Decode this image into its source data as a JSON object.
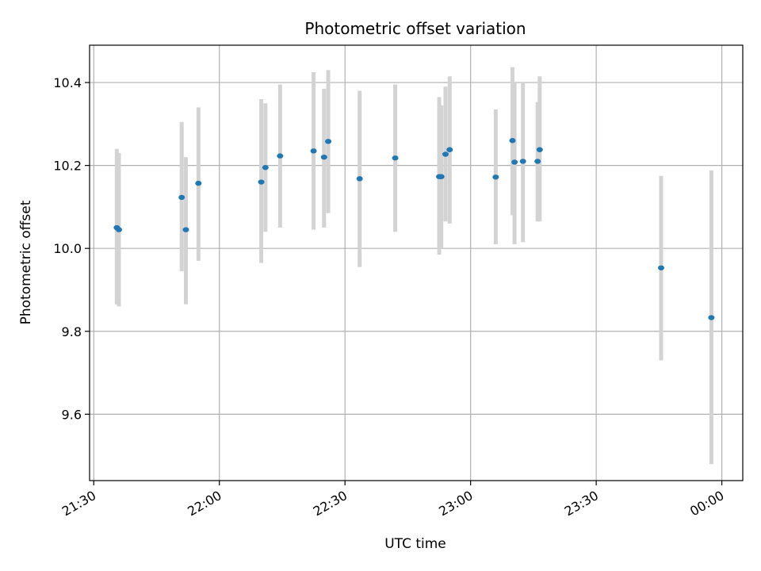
{
  "chart_data": {
    "type": "scatter",
    "title": "Photometric offset variation",
    "xlabel": "UTC time",
    "ylabel": "Photometric offset",
    "grid": true,
    "ylim": [
      9.44,
      10.49
    ],
    "xlim": [
      "21:29",
      "00:05"
    ],
    "x_ticks": [
      "21:30",
      "22:00",
      "22:30",
      "23:00",
      "23:30",
      "00:00"
    ],
    "y_ticks": [
      "9.6",
      "9.8",
      "10.0",
      "10.2",
      "10.4"
    ],
    "colors": {
      "point": "#1f77b4",
      "errorbar": "#d3d3d3",
      "grid": "#b0b0b0",
      "axes": "#000000"
    },
    "points": [
      {
        "t": "21:35:30",
        "y": 10.05,
        "ylo": 9.865,
        "yhi": 10.24
      },
      {
        "t": "21:36:00",
        "y": 10.045,
        "ylo": 9.86,
        "yhi": 10.23
      },
      {
        "t": "21:51:00",
        "y": 10.123,
        "ylo": 9.945,
        "yhi": 10.305
      },
      {
        "t": "21:52:00",
        "y": 10.045,
        "ylo": 9.865,
        "yhi": 10.22
      },
      {
        "t": "21:55:00",
        "y": 10.157,
        "ylo": 9.97,
        "yhi": 10.34
      },
      {
        "t": "22:10:00",
        "y": 10.16,
        "ylo": 9.965,
        "yhi": 10.36
      },
      {
        "t": "22:11:00",
        "y": 10.195,
        "ylo": 10.04,
        "yhi": 10.35
      },
      {
        "t": "22:14:30",
        "y": 10.223,
        "ylo": 10.05,
        "yhi": 10.395
      },
      {
        "t": "22:22:30",
        "y": 10.235,
        "ylo": 10.045,
        "yhi": 10.425
      },
      {
        "t": "22:25:00",
        "y": 10.22,
        "ylo": 10.05,
        "yhi": 10.385
      },
      {
        "t": "22:26:00",
        "y": 10.258,
        "ylo": 10.085,
        "yhi": 10.43
      },
      {
        "t": "22:33:30",
        "y": 10.168,
        "ylo": 9.955,
        "yhi": 10.38
      },
      {
        "t": "22:42:00",
        "y": 10.218,
        "ylo": 10.04,
        "yhi": 10.395
      },
      {
        "t": "22:52:30",
        "y": 10.173,
        "ylo": 9.985,
        "yhi": 10.365
      },
      {
        "t": "22:53:00",
        "y": 10.173,
        "ylo": 10.0,
        "yhi": 10.345
      },
      {
        "t": "22:54:00",
        "y": 10.227,
        "ylo": 10.065,
        "yhi": 10.39
      },
      {
        "t": "22:55:00",
        "y": 10.238,
        "ylo": 10.06,
        "yhi": 10.415
      },
      {
        "t": "23:06:00",
        "y": 10.172,
        "ylo": 10.01,
        "yhi": 10.335
      },
      {
        "t": "23:10:00",
        "y": 10.26,
        "ylo": 10.08,
        "yhi": 10.437
      },
      {
        "t": "23:10:30",
        "y": 10.208,
        "ylo": 10.01,
        "yhi": 10.4
      },
      {
        "t": "23:12:30",
        "y": 10.21,
        "ylo": 10.015,
        "yhi": 10.4
      },
      {
        "t": "23:16:00",
        "y": 10.21,
        "ylo": 10.065,
        "yhi": 10.353
      },
      {
        "t": "23:16:30",
        "y": 10.238,
        "ylo": 10.065,
        "yhi": 10.415
      },
      {
        "t": "23:45:30",
        "y": 9.953,
        "ylo": 9.73,
        "yhi": 10.175
      },
      {
        "t": "23:57:30",
        "y": 9.833,
        "ylo": 9.48,
        "yhi": 10.188
      }
    ]
  }
}
